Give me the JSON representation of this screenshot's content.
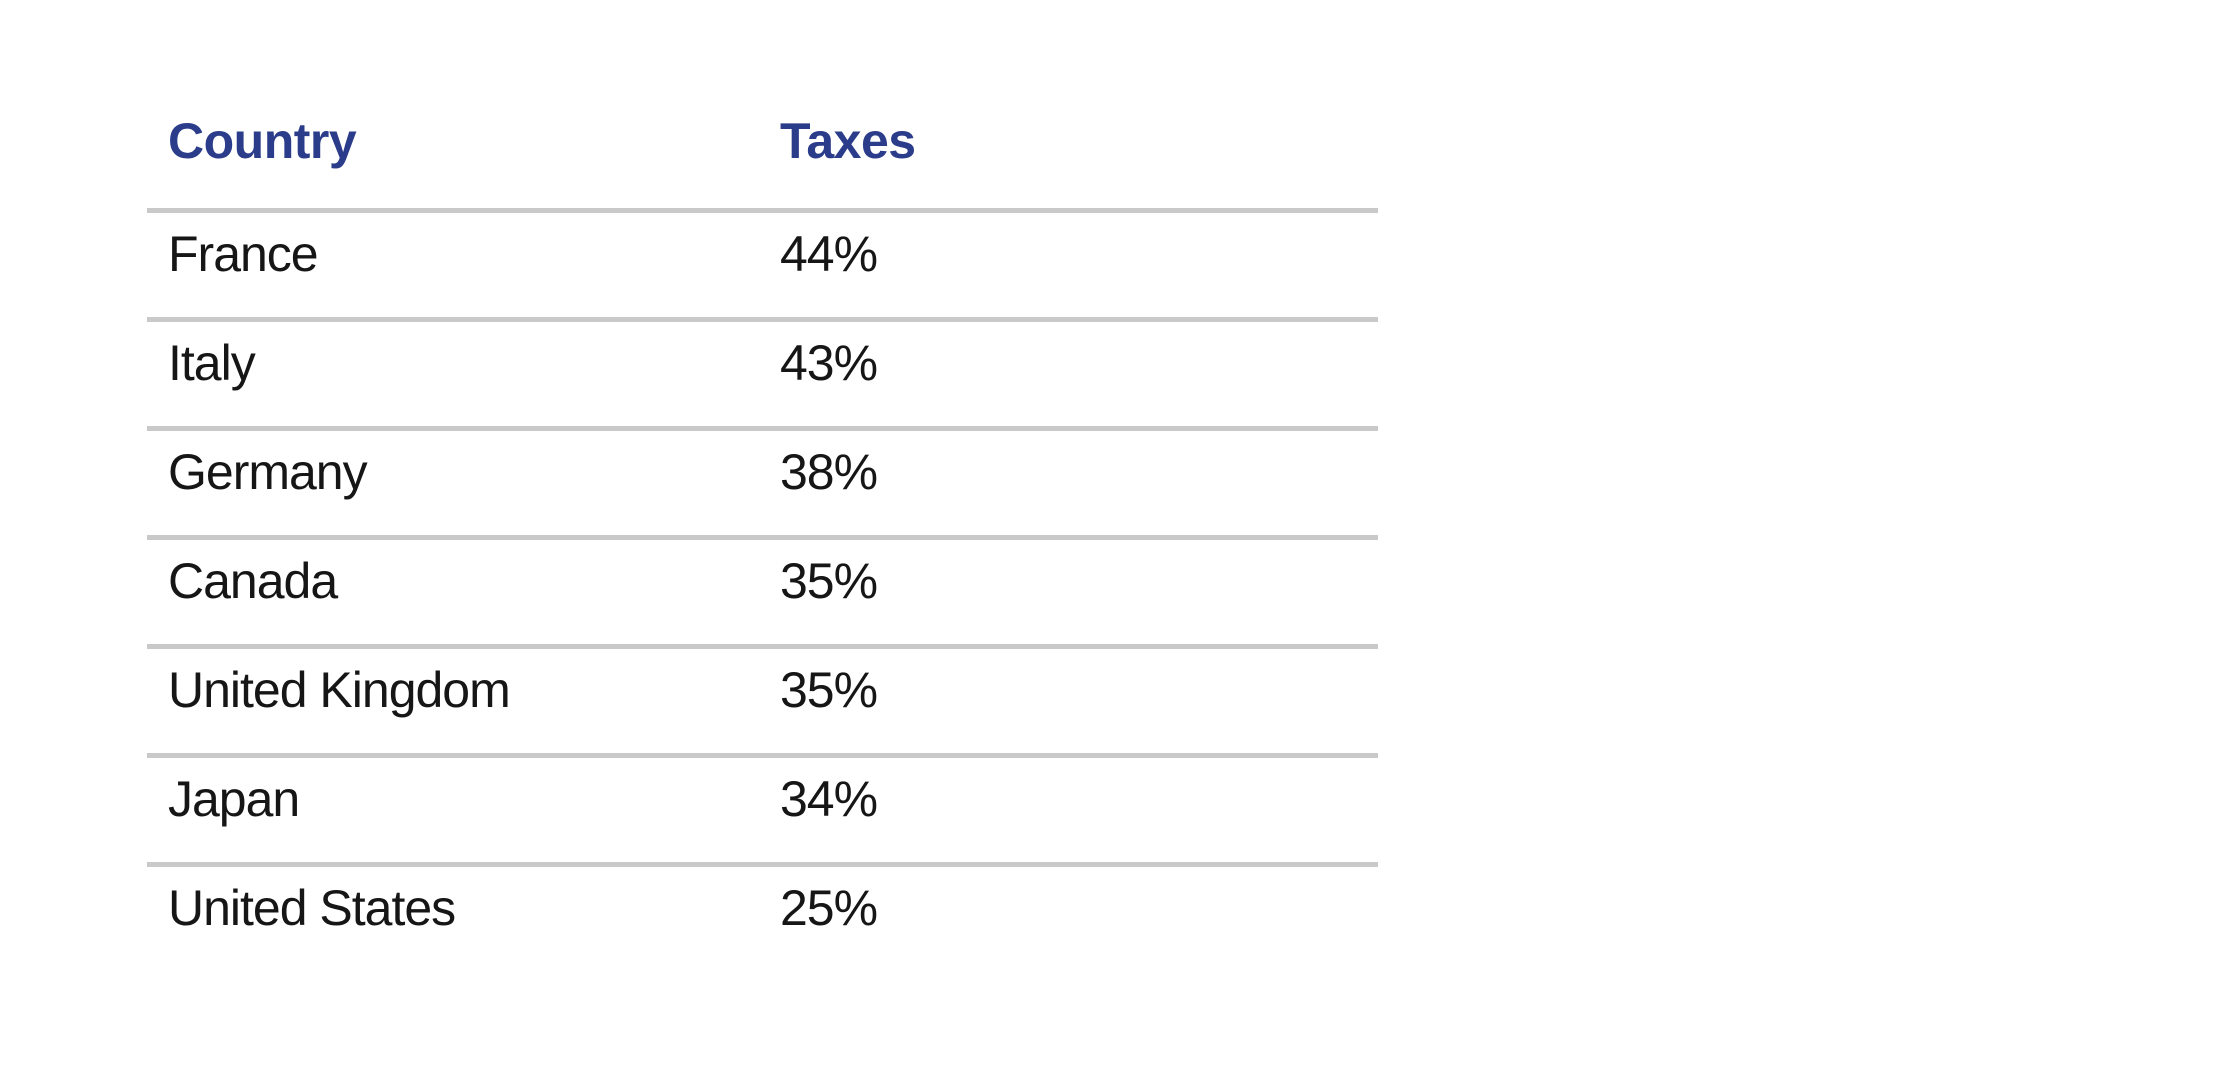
{
  "page": {
    "background": "#ffffff"
  },
  "table": {
    "header": {
      "country": "Country",
      "taxes": "Taxes"
    },
    "rows": [
      {
        "country": "France",
        "taxes": "44%"
      },
      {
        "country": "Italy",
        "taxes": "43%"
      },
      {
        "country": "Germany",
        "taxes": "38%"
      },
      {
        "country": "Canada",
        "taxes": "35%"
      },
      {
        "country": "United Kingdom",
        "taxes": "35%"
      },
      {
        "country": "Japan",
        "taxes": "34%"
      },
      {
        "country": "United States",
        "taxes": "25%"
      }
    ]
  },
  "chart_data": {
    "type": "table",
    "columns": [
      "Country",
      "Taxes"
    ],
    "categories": [
      "France",
      "Italy",
      "Germany",
      "Canada",
      "United Kingdom",
      "Japan",
      "United States"
    ],
    "values_percent": [
      44,
      43,
      38,
      35,
      35,
      34,
      25
    ]
  },
  "colors": {
    "header_text": "#2b3c8a",
    "row_text": "#161616",
    "divider": "#c9c9c9",
    "background": "#ffffff"
  }
}
